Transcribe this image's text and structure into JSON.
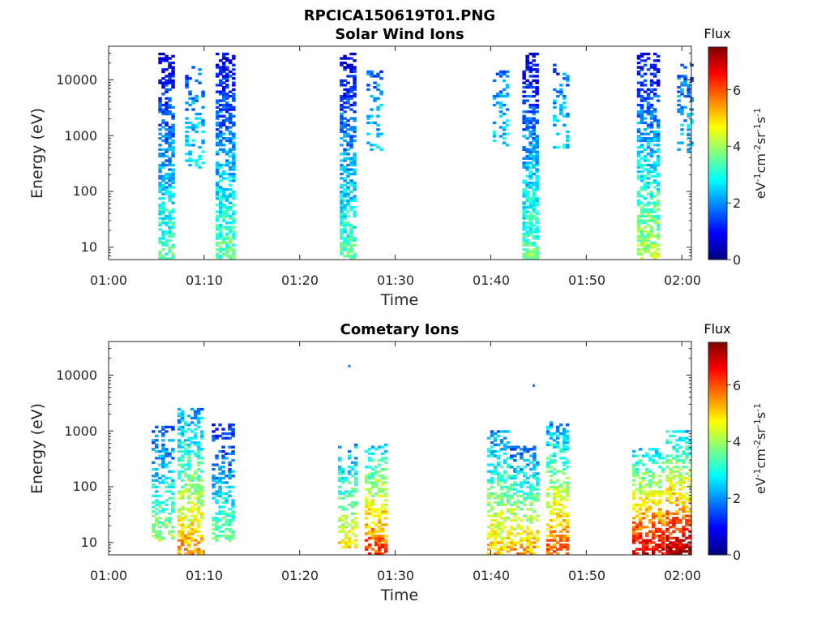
{
  "figure_title": "RPCICA150619T01.PNG",
  "colormap": [
    "#00007f",
    "#0000ff",
    "#007fff",
    "#00ffff",
    "#7fff7f",
    "#ffff00",
    "#ff7f00",
    "#ff0000",
    "#7f0000"
  ],
  "chart_data": [
    {
      "type": "heatmap",
      "title": "Solar Wind Ions",
      "xlabel": "Time",
      "ylabel": "Energy (eV)",
      "x_ticks": [
        "01:00",
        "01:10",
        "01:20",
        "01:30",
        "01:40",
        "01:50",
        "02:00"
      ],
      "x_range_minutes": [
        0,
        61
      ],
      "y_scale": "log",
      "y_range": [
        6,
        40000
      ],
      "y_ticks": [
        10,
        100,
        1000,
        10000
      ],
      "y_tick_labels": [
        "10",
        "100",
        "1000",
        "10000"
      ],
      "colorbar": {
        "title": "Flux",
        "label": "eV-1cm-2sr-1s-1",
        "range": [
          0,
          7.5
        ],
        "ticks": [
          "0",
          "2",
          "4",
          "6"
        ]
      },
      "bursts": [
        {
          "t": [
            5.2,
            6.6
          ],
          "e": [
            6,
            30000
          ],
          "flux": [
            0.7,
            3.4
          ],
          "density": 0.7
        },
        {
          "t": [
            8.0,
            9.8
          ],
          "e": [
            250,
            20000
          ],
          "flux": [
            1.5,
            2.8
          ],
          "density": 0.3
        },
        {
          "t": [
            11.2,
            13.0
          ],
          "e": [
            6,
            30000
          ],
          "flux": [
            0.7,
            3.6
          ],
          "density": 0.7
        },
        {
          "t": [
            24.2,
            25.8
          ],
          "e": [
            6,
            30000
          ],
          "flux": [
            0.7,
            3.4
          ],
          "density": 0.7
        },
        {
          "t": [
            27.0,
            28.6
          ],
          "e": [
            500,
            15000
          ],
          "flux": [
            1.6,
            2.6
          ],
          "density": 0.3
        },
        {
          "t": [
            40.2,
            41.8
          ],
          "e": [
            600,
            15000
          ],
          "flux": [
            1.7,
            2.7
          ],
          "density": 0.3
        },
        {
          "t": [
            43.3,
            44.7
          ],
          "e": [
            6,
            30000
          ],
          "flux": [
            0.7,
            3.6
          ],
          "density": 0.7
        },
        {
          "t": [
            46.5,
            48.2
          ],
          "e": [
            600,
            20000
          ],
          "flux": [
            1.6,
            2.7
          ],
          "density": 0.3
        },
        {
          "t": [
            55.3,
            57.6
          ],
          "e": [
            6,
            30000
          ],
          "flux": [
            0.8,
            4.2
          ],
          "density": 0.65
        },
        {
          "t": [
            59.5,
            61.0
          ],
          "e": [
            500,
            20000
          ],
          "flux": [
            1.5,
            2.6
          ],
          "density": 0.35
        }
      ]
    },
    {
      "type": "heatmap",
      "title": "Cometary Ions",
      "xlabel": "Time",
      "ylabel": "Energy (eV)",
      "x_ticks": [
        "01:00",
        "01:10",
        "01:20",
        "01:30",
        "01:40",
        "01:50",
        "02:00"
      ],
      "x_range_minutes": [
        0,
        61
      ],
      "y_scale": "log",
      "y_range": [
        6,
        40000
      ],
      "y_ticks": [
        10,
        100,
        1000,
        10000
      ],
      "y_tick_labels": [
        "10",
        "100",
        "1000",
        "10000"
      ],
      "colorbar": {
        "title": "Flux",
        "label": "eV-1cm-2sr-1s-1",
        "range": [
          0,
          7.5
        ],
        "ticks": [
          "0",
          "2",
          "4",
          "6"
        ]
      },
      "bursts": [
        {
          "t": [
            4.5,
            6.8
          ],
          "e": [
            10,
            1200
          ],
          "flux": [
            1.5,
            4.0
          ],
          "density": 0.5
        },
        {
          "t": [
            7.2,
            9.8
          ],
          "e": [
            6,
            2500
          ],
          "flux": [
            2.0,
            5.5
          ],
          "density": 0.6
        },
        {
          "t": [
            10.8,
            13.0
          ],
          "e": [
            10,
            1300
          ],
          "flux": [
            1.0,
            3.8
          ],
          "density": 0.5
        },
        {
          "t": [
            24.0,
            25.8
          ],
          "e": [
            8,
            600
          ],
          "flux": [
            2.0,
            4.8
          ],
          "density": 0.55
        },
        {
          "t": [
            26.8,
            29.0
          ],
          "e": [
            6,
            600
          ],
          "flux": [
            2.5,
            6.2
          ],
          "density": 0.6
        },
        {
          "t": [
            39.6,
            41.8
          ],
          "e": [
            6,
            1000
          ],
          "flux": [
            2.0,
            5.2
          ],
          "density": 0.55
        },
        {
          "t": [
            42.0,
            44.8
          ],
          "e": [
            6,
            600
          ],
          "flux": [
            1.5,
            5.5
          ],
          "density": 0.55
        },
        {
          "t": [
            45.8,
            48.0
          ],
          "e": [
            6,
            1500
          ],
          "flux": [
            2.0,
            6.0
          ],
          "density": 0.55
        },
        {
          "t": [
            54.8,
            58.0
          ],
          "e": [
            6,
            500
          ],
          "flux": [
            2.5,
            7.0
          ],
          "density": 0.6
        },
        {
          "t": [
            58.3,
            61.0
          ],
          "e": [
            6,
            1000
          ],
          "flux": [
            2.5,
            7.2
          ],
          "density": 0.6
        }
      ],
      "isolated_points": [
        {
          "t": 25.2,
          "e": 14500,
          "flux": 1.8
        },
        {
          "t": 44.5,
          "e": 6500,
          "flux": 1.8
        }
      ]
    }
  ]
}
